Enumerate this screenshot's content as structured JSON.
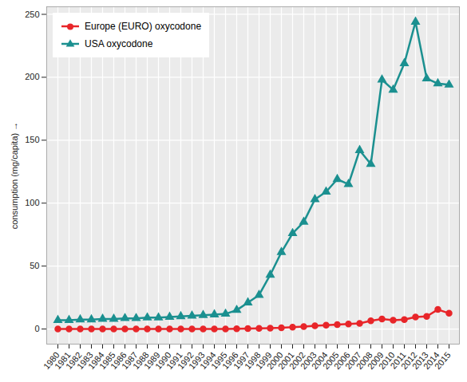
{
  "chart_data": {
    "type": "line",
    "y_label": "consumption (mg/capita)",
    "x": [
      1980,
      1981,
      1982,
      1983,
      1984,
      1985,
      1986,
      1987,
      1988,
      1989,
      1990,
      1991,
      1992,
      1993,
      1994,
      1995,
      1996,
      1997,
      1998,
      1999,
      2000,
      2001,
      2002,
      2003,
      2004,
      2005,
      2006,
      2007,
      2008,
      2009,
      2010,
      2011,
      2012,
      2013,
      2014,
      2015
    ],
    "series": [
      {
        "name": "Europe (EURO) oxycodone",
        "color": "#e8262a",
        "marker": "circle",
        "values": [
          0,
          0,
          0,
          0,
          0,
          0,
          0,
          0,
          0,
          0,
          0,
          0,
          0,
          0,
          0,
          0,
          0.2,
          0.3,
          0.5,
          0.7,
          1,
          1.5,
          2,
          2.5,
          3,
          3.5,
          4,
          4.5,
          6.5,
          8,
          7,
          7.5,
          9.5,
          10,
          15.5,
          12.5
        ]
      },
      {
        "name": "USA oxycodone",
        "color": "#1b9090",
        "marker": "triangle",
        "values": [
          7,
          7,
          7.5,
          7.5,
          8,
          8,
          8.5,
          8.5,
          9,
          9,
          9.5,
          10,
          10.5,
          11,
          11.5,
          12,
          15,
          21,
          27,
          43,
          61,
          76,
          85,
          103,
          109,
          119,
          115,
          142,
          131,
          198,
          190,
          211,
          244,
          199,
          195,
          194
        ]
      }
    ],
    "ylim": [
      -12,
      256
    ],
    "yticks": [
      0,
      50,
      100,
      150,
      200,
      250
    ],
    "grid": true,
    "legend": "top-left"
  }
}
